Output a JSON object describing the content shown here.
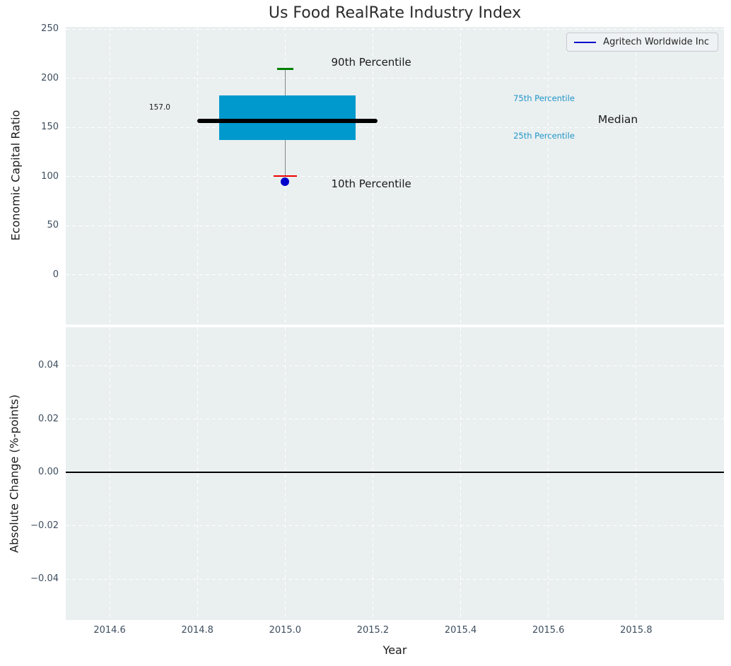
{
  "figure": {
    "title": "Us Food RealRate Industry Index",
    "background": "#ffffff",
    "axes_background": "#eaeff0",
    "grid_color": "#ffffff",
    "tick_color": "#3d4d5e",
    "text_color": "#1a1a1a"
  },
  "legend": {
    "label": "Agritech Worldwide Inc",
    "line_color": "#0000cc",
    "position": "upper right"
  },
  "chart_data": [
    {
      "type": "boxplot",
      "title": "Us Food RealRate Industry Index",
      "xlabel": "",
      "ylabel": "Economic Capital Ratio",
      "xlim": [
        2014.5,
        2016.0
      ],
      "ylim": [
        -50.5,
        252.5
      ],
      "yticks": [
        0,
        50,
        100,
        150,
        200,
        250
      ],
      "ytick_labels": [
        "0",
        "50",
        "100",
        "150",
        "200",
        "250"
      ],
      "grid": true,
      "show_xtick_labels": false,
      "box": {
        "x_center": 2015.0,
        "p90": 210,
        "p75": 183,
        "median": 157,
        "p25": 137,
        "p10": 101,
        "company_value": 95,
        "box_x0": 2014.85,
        "box_x1": 2015.16,
        "median_x0": 2014.8,
        "median_x1": 2015.21,
        "cap90_halfwidth": 0.018,
        "cap10_halfwidth": 0.027,
        "box_color": "#0099cd",
        "median_color": "#000000",
        "whisker_color": "#888888",
        "cap90_color": "#008000",
        "cap10_color": "#ee0000"
      },
      "company_point": {
        "label": "Agritech Worldwide Inc",
        "x": 2015.0,
        "y": 95,
        "color": "#0000cc",
        "radius_px": 6
      },
      "annotations": [
        {
          "text": "90th Percentile",
          "x": 2015.105,
          "y": 216.5,
          "size": 15,
          "color": "#1a1a1a"
        },
        {
          "text": "10th Percentile",
          "x": 2015.105,
          "y": 93.0,
          "size": 15,
          "color": "#1a1a1a"
        },
        {
          "text": "157.0",
          "x": 2014.69,
          "y": 170.5,
          "size": 10.5,
          "color": "#1a1a1a"
        },
        {
          "text": "75th Percentile",
          "x": 2015.52,
          "y": 179.5,
          "size": 11.5,
          "color": "#1e96c8"
        },
        {
          "text": "Median",
          "x": 2015.713,
          "y": 158.0,
          "size": 15.5,
          "color": "#1a1a1a"
        },
        {
          "text": "25th Percentile",
          "x": 2015.52,
          "y": 141.5,
          "size": 11.5,
          "color": "#1e96c8"
        }
      ],
      "legend": {
        "label": "Agritech Worldwide Inc",
        "line_color": "#0000cc",
        "position": "upper right"
      }
    },
    {
      "type": "line",
      "title": "",
      "xlabel": "Year",
      "ylabel": "Absolute Change (%-points)",
      "xlim": [
        2014.5,
        2016.0
      ],
      "ylim": [
        -0.0553,
        0.0543
      ],
      "yticks": [
        0.04,
        0.02,
        0.0,
        -0.02,
        -0.04
      ],
      "ytick_labels": [
        "0.04",
        "0.02",
        "0.00",
        "−0.02",
        "−0.04"
      ],
      "xticks": [
        2014.6,
        2014.8,
        2015.0,
        2015.2,
        2015.4,
        2015.6,
        2015.8
      ],
      "xtick_labels": [
        "2014.6",
        "2014.8",
        "2015.0",
        "2015.2",
        "2015.4",
        "2015.6",
        "2015.8"
      ],
      "grid": true,
      "show_xtick_labels": true,
      "zero_line": {
        "y": 0.0,
        "color": "#000000"
      },
      "series": []
    }
  ]
}
